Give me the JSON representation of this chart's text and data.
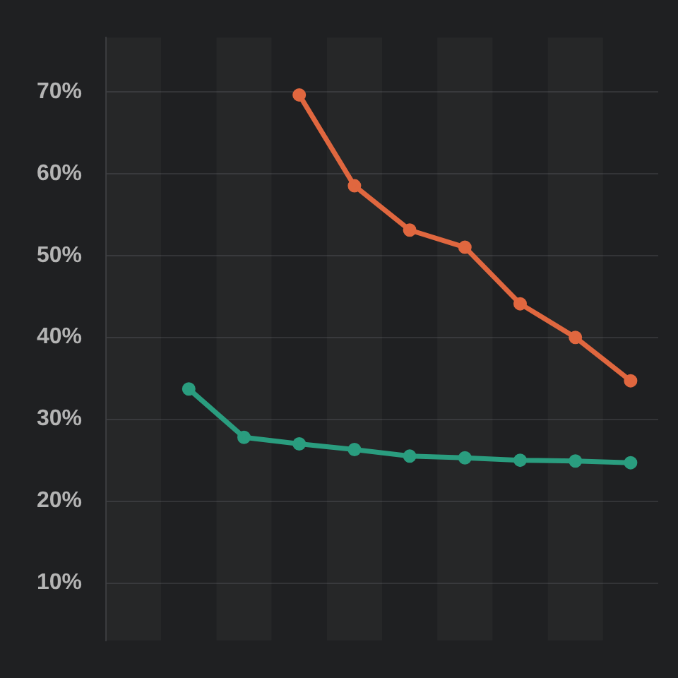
{
  "chart_data": {
    "type": "line",
    "categories": [
      null,
      null,
      null,
      null,
      null,
      null,
      null,
      null,
      null,
      null
    ],
    "series": [
      {
        "color": "#2a9d7f",
        "values": [
          null,
          33.7,
          27.8,
          27.0,
          26.3,
          25.5,
          25.3,
          25.0,
          24.9,
          24.7
        ]
      },
      {
        "color": "#e0673f",
        "values": [
          null,
          null,
          null,
          69.6,
          58.5,
          53.1,
          51.0,
          44.1,
          40.0,
          34.7
        ]
      }
    ],
    "ylim": [
      3,
      76.6
    ],
    "yticks": [
      {
        "value": 10,
        "label": "10%"
      },
      {
        "value": 20,
        "label": "20%"
      },
      {
        "value": 30,
        "label": "30%"
      },
      {
        "value": 40,
        "label": "40%"
      },
      {
        "value": 50,
        "label": "50%"
      },
      {
        "value": 60,
        "label": "60%"
      },
      {
        "value": 70,
        "label": "70%"
      }
    ],
    "grid": "y",
    "tick_labels": "y",
    "marker": "circle",
    "line_style": "solid",
    "legend": false
  }
}
